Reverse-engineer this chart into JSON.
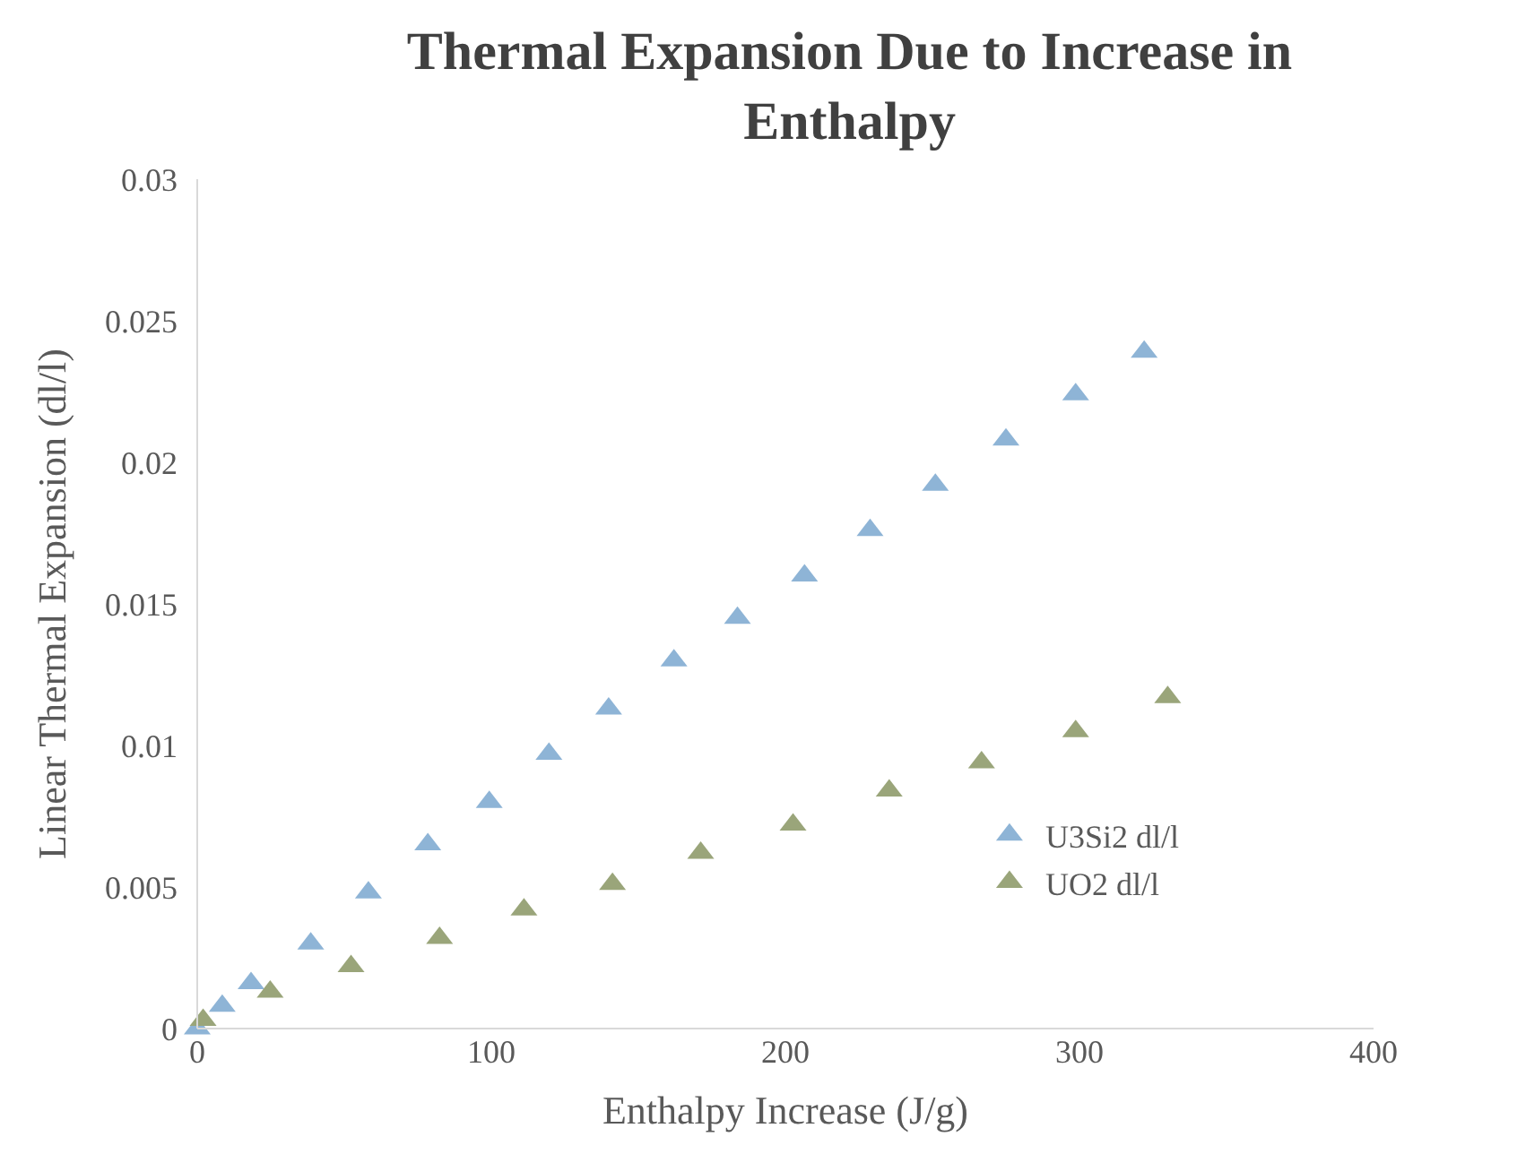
{
  "chart_data": {
    "type": "scatter",
    "title": "Thermal Expansion Due to Increase in Enthalpy",
    "xlabel": "Enthalpy Increase (J/g)",
    "ylabel": "Linear Thermal Expansion (dl/l)",
    "series": [
      {
        "name": "U3Si2 dl/l",
        "color": "#8eb4d6",
        "x": [
          0,
          8.5,
          18.3,
          38.6,
          58.2,
          78.4,
          99.3,
          119.6,
          139.9,
          162.1,
          183.7,
          206.5,
          228.8,
          251,
          275,
          298.7,
          322
        ],
        "values": [
          0,
          0.0008,
          0.0016,
          0.003,
          0.0048,
          0.0065,
          0.008,
          0.0097,
          0.0113,
          0.013,
          0.0145,
          0.016,
          0.0176,
          0.0192,
          0.0208,
          0.0224,
          0.0239
        ]
      },
      {
        "name": "UO2 dl/l",
        "color": "#9aa57a",
        "x": [
          2,
          24.8,
          52.3,
          82.4,
          111.1,
          141.2,
          171.2,
          202.6,
          235.3,
          266.7,
          298.7,
          330
        ],
        "values": [
          0.0003,
          0.0013,
          0.0022,
          0.0032,
          0.0042,
          0.0051,
          0.0062,
          0.0072,
          0.0084,
          0.0094,
          0.0105,
          0.0117
        ]
      }
    ],
    "xlim": [
      0,
      400
    ],
    "xticks": [
      0,
      100,
      200,
      300,
      400
    ],
    "ylim": [
      0,
      0.03
    ],
    "yticks": [
      0,
      0.005,
      0.01,
      0.015,
      0.02,
      0.025,
      0.03
    ],
    "marker": "triangle",
    "legend": "right"
  }
}
